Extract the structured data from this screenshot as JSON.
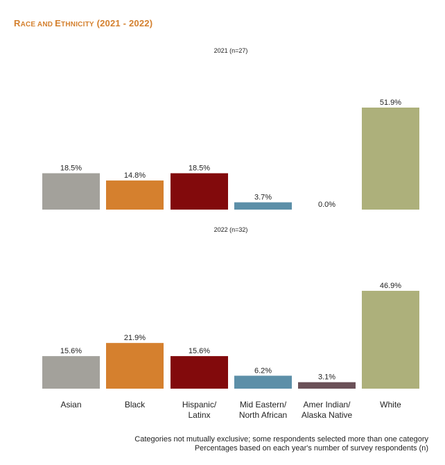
{
  "header": {
    "title_cap_r": "R",
    "title_small_1": "ACE AND ",
    "title_cap_e": "E",
    "title_small_2": "THNICITY",
    "title_rest": " (2021 - 2022)"
  },
  "chart_data": [
    {
      "type": "bar",
      "title": "2021 (n=27)",
      "categories": [
        "Asian",
        "Black",
        "Hispanic/ Latinx",
        "Mid Eastern/ North African",
        "Amer Indian/ Alaska Native",
        "White"
      ],
      "values": [
        18.5,
        14.8,
        18.5,
        3.7,
        0.0,
        51.9
      ],
      "labels": [
        "18.5%",
        "14.8%",
        "18.5%",
        "3.7%",
        "0.0%",
        "51.9%"
      ],
      "ylim": [
        0,
        51.9
      ],
      "grid": false
    },
    {
      "type": "bar",
      "title": "2022 (n=32)",
      "categories": [
        "Asian",
        "Black",
        "Hispanic/ Latinx",
        "Mid Eastern/ North African",
        "Amer Indian/ Alaska Native",
        "White"
      ],
      "values": [
        15.6,
        21.9,
        15.6,
        6.2,
        3.1,
        46.9
      ],
      "labels": [
        "15.6%",
        "21.9%",
        "15.6%",
        "6.2%",
        "3.1%",
        "46.9%"
      ],
      "ylim": [
        0,
        51.9
      ],
      "grid": false
    }
  ],
  "category_labels": [
    [
      "Asian"
    ],
    [
      "Black"
    ],
    [
      "Hispanic/",
      "Latinx"
    ],
    [
      "Mid Eastern/",
      "North African"
    ],
    [
      "Amer Indian/",
      "Alaska Native"
    ],
    [
      "White"
    ]
  ],
  "colors": [
    "#a3a19b",
    "#d5802e",
    "#820a0c",
    "#5c8fa8",
    "#6b5158",
    "#adb07b"
  ],
  "notes": {
    "line1": "Categories not mutually exclusive; some respondents selected more than one category",
    "line2": "Percentages based on each year's number of survey respondents (n)"
  }
}
